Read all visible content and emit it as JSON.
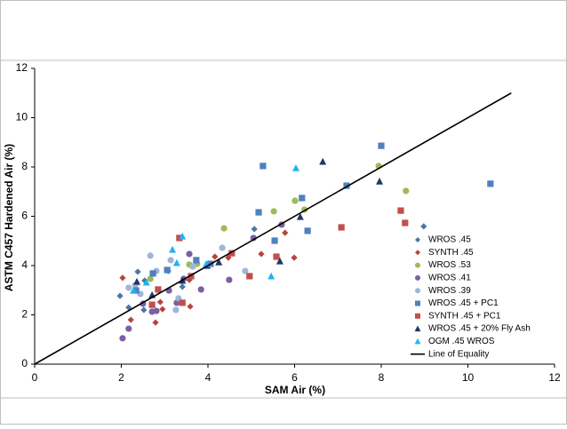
{
  "chart_data": {
    "type": "scatter",
    "x_label": "SAM Air (%)",
    "y_label": "ASTM C457 Hardened Air (%)",
    "xlim": [
      0,
      12
    ],
    "xticks": [
      0,
      2,
      4,
      6,
      8,
      10,
      12
    ],
    "ylim": [
      0,
      12
    ],
    "yticks": [
      0,
      2,
      4,
      6,
      8,
      10,
      12
    ],
    "legend": "right",
    "series": [
      {
        "name": "WROS .45",
        "color": "#4a76a8",
        "marker": "diamond",
        "x": [
          1.97,
          2.38,
          2.17,
          2.52,
          2.54,
          3.08,
          3.41,
          5.07,
          8.98
        ],
        "values": [
          2.77,
          3.75,
          2.3,
          2.2,
          3.39,
          3.78,
          3.14,
          5.48,
          5.59
        ]
      },
      {
        "name": "SYNTH .45",
        "color": "#b8433f",
        "marker": "diamond",
        "x": [
          2.03,
          2.22,
          2.79,
          2.9,
          2.95,
          3.57,
          3.59,
          4.16,
          4.47,
          5.23,
          5.78,
          5.99
        ],
        "values": [
          3.5,
          1.8,
          1.69,
          2.52,
          2.23,
          3.42,
          2.34,
          4.36,
          4.32,
          4.47,
          5.33,
          4.32
        ]
      },
      {
        "name": "WROS .53",
        "color": "#9bbb59",
        "marker": "circle",
        "x": [
          2.67,
          3.57,
          4.37,
          5.52,
          6.01,
          6.23,
          7.94,
          8.57,
          4.02,
          3.75
        ],
        "values": [
          3.46,
          4.04,
          5.51,
          6.2,
          6.63,
          6.27,
          8.04,
          7.03,
          4.04,
          4.07
        ]
      },
      {
        "name": "WROS .41",
        "color": "#7b5fa0",
        "marker": "circle",
        "x": [
          2.03,
          2.17,
          2.5,
          2.71,
          2.81,
          3.1,
          3.44,
          3.57,
          3.84,
          4.49,
          5.05,
          5.7,
          3.28
        ],
        "values": [
          1.05,
          1.44,
          2.45,
          2.13,
          2.16,
          2.99,
          3.46,
          4.47,
          3.03,
          3.42,
          5.12,
          5.66,
          2.49
        ]
      },
      {
        "name": "WROS .39",
        "color": "#9fb6d8",
        "marker": "circle",
        "x": [
          2.17,
          2.32,
          2.44,
          2.67,
          2.81,
          3.14,
          3.26,
          3.32,
          3.65,
          4.33,
          4.86
        ],
        "values": [
          3.1,
          3.21,
          2.85,
          4.4,
          3.78,
          4.22,
          2.2,
          2.67,
          3.96,
          4.72,
          3.78
        ]
      },
      {
        "name": "WROS .45 + PC1",
        "color": "#4f81bd",
        "marker": "square",
        "x": [
          2.34,
          2.73,
          3.06,
          3.73,
          4.06,
          5.17,
          5.27,
          5.54,
          6.17,
          6.3,
          7.2,
          8.0,
          10.52
        ],
        "values": [
          2.99,
          3.68,
          3.82,
          4.22,
          4.07,
          6.16,
          8.04,
          5.01,
          6.74,
          5.41,
          7.24,
          8.86,
          7.32
        ]
      },
      {
        "name": "SYNTH .45 + PC1",
        "color": "#c0504d",
        "marker": "square",
        "x": [
          2.71,
          2.85,
          3.34,
          3.41,
          3.61,
          4.55,
          4.96,
          5.58,
          7.08,
          8.45,
          8.55
        ],
        "values": [
          2.41,
          3.03,
          5.12,
          2.49,
          3.57,
          4.5,
          3.57,
          4.36,
          5.55,
          6.23,
          5.73
        ]
      },
      {
        "name": "WROS .45 + 20% Fly Ash",
        "color": "#1f3864",
        "marker": "triangle",
        "x": [
          2.36,
          2.71,
          3.41,
          3.98,
          4.25,
          5.66,
          6.13,
          6.65,
          7.96
        ],
        "values": [
          3.35,
          2.81,
          3.39,
          4.0,
          4.14,
          4.18,
          5.98,
          8.22,
          7.42
        ]
      },
      {
        "name": "OGM .45 WROS",
        "color": "#1fb4ef",
        "marker": "triangle",
        "x": [
          2.28,
          2.58,
          3.18,
          3.28,
          3.41,
          3.96,
          5.46,
          6.03
        ],
        "values": [
          2.99,
          3.32,
          4.65,
          4.11,
          5.19,
          4.07,
          3.57,
          7.96
        ]
      },
      {
        "name": "Line of Equality",
        "color": "#000000",
        "marker": "line",
        "x": [
          0,
          11
        ],
        "values": [
          0,
          11
        ]
      }
    ]
  }
}
